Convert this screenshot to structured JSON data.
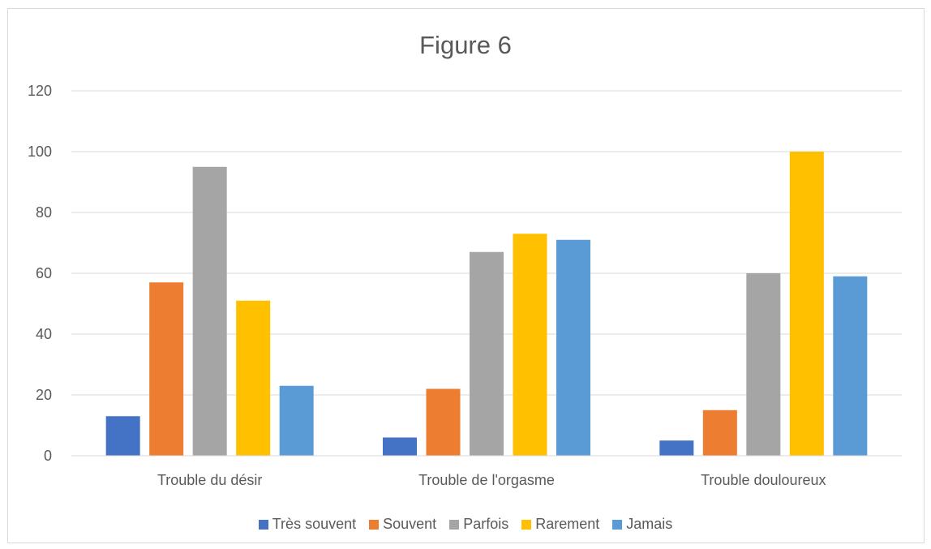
{
  "chart_data": {
    "type": "bar",
    "title": "Figure 6",
    "categories": [
      "Trouble du désir",
      "Trouble de l'orgasme",
      "Trouble douloureux"
    ],
    "series": [
      {
        "name": "Très souvent",
        "color": "#4472C4",
        "values": [
          13,
          6,
          5
        ]
      },
      {
        "name": "Souvent",
        "color": "#ED7D31",
        "values": [
          57,
          22,
          15
        ]
      },
      {
        "name": "Parfois",
        "color": "#A5A5A5",
        "values": [
          95,
          67,
          60
        ]
      },
      {
        "name": "Rarement",
        "color": "#FFC000",
        "values": [
          51,
          73,
          100
        ]
      },
      {
        "name": "Jamais",
        "color": "#5B9BD5",
        "values": [
          23,
          71,
          59
        ]
      }
    ],
    "ylim": [
      0,
      120
    ],
    "yticks": [
      "0",
      "20",
      "40",
      "60",
      "80",
      "100",
      "120"
    ],
    "grid": true,
    "legend_position": "bottom",
    "xlabel": "",
    "ylabel": ""
  }
}
